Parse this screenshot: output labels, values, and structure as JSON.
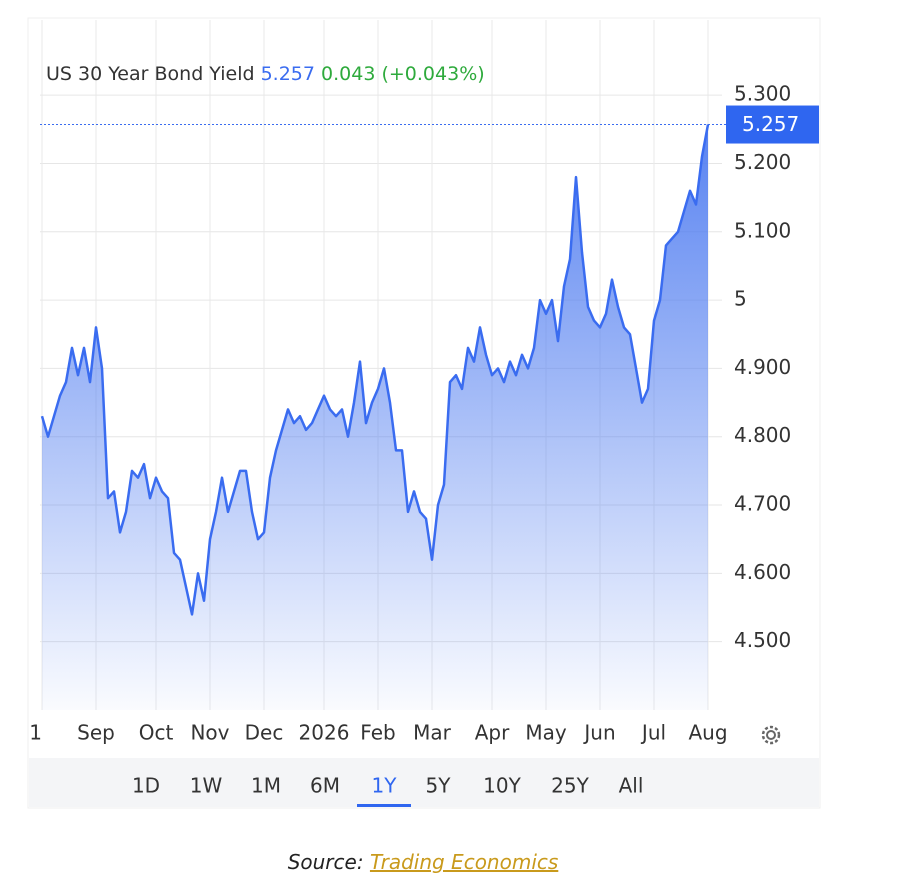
{
  "chart_data": {
    "type": "area-line",
    "title": "US 30 Year Bond Yield",
    "change_text": "0.043 (+0.043%)",
    "series": [
      {
        "name": "US 30 Year Bond Yield",
        "color": "#3a6cf0",
        "values": [
          4.83,
          4.8,
          4.83,
          4.86,
          4.88,
          4.93,
          4.89,
          4.93,
          4.88,
          4.96,
          4.9,
          4.71,
          4.72,
          4.66,
          4.69,
          4.75,
          4.74,
          4.76,
          4.71,
          4.74,
          4.72,
          4.71,
          4.63,
          4.62,
          4.58,
          4.54,
          4.6,
          4.56,
          4.65,
          4.69,
          4.74,
          4.69,
          4.72,
          4.75,
          4.75,
          4.69,
          4.65,
          4.66,
          4.74,
          4.78,
          4.81,
          4.84,
          4.82,
          4.83,
          4.81,
          4.82,
          4.84,
          4.86,
          4.84,
          4.83,
          4.84,
          4.8,
          4.85,
          4.91,
          4.82,
          4.85,
          4.87,
          4.9,
          4.85,
          4.78,
          4.78,
          4.69,
          4.72,
          4.69,
          4.68,
          4.62,
          4.7,
          4.73,
          4.88,
          4.89,
          4.87,
          4.93,
          4.91,
          4.96,
          4.92,
          4.89,
          4.9,
          4.88,
          4.91,
          4.89,
          4.92,
          4.9,
          4.93,
          5.0,
          4.98,
          5.0,
          4.94,
          5.02,
          5.06,
          5.18,
          5.07,
          4.99,
          4.97,
          4.96,
          4.98,
          5.03,
          4.99,
          4.96,
          4.95,
          4.9,
          4.85,
          4.87,
          4.97,
          5.0,
          5.08,
          5.09,
          5.1,
          5.13,
          5.16,
          5.14,
          5.21,
          5.257
        ]
      }
    ],
    "ylim": [
      4.4,
      5.41
    ],
    "yticks": [
      {
        "value": 5.3,
        "label": "5.300"
      },
      {
        "value": 5.2,
        "label": "5.200"
      },
      {
        "value": 5.1,
        "label": "5.100"
      },
      5,
      {
        "value": 4.9,
        "label": "4.900"
      },
      {
        "value": 4.8,
        "label": "4.800"
      },
      {
        "value": 4.7,
        "label": "4.700"
      },
      {
        "value": 4.6,
        "label": "4.600"
      },
      {
        "value": 4.5,
        "label": "4.500"
      }
    ],
    "xticks": [
      {
        "value": 0,
        "label": "1"
      },
      {
        "value": 9,
        "label": "Sep"
      },
      {
        "value": 19,
        "label": "Oct"
      },
      {
        "value": 28,
        "label": "Nov"
      },
      {
        "value": 37,
        "label": "Dec"
      },
      {
        "value": 47,
        "label": "2026"
      },
      {
        "value": 56,
        "label": "Feb"
      },
      {
        "value": 65,
        "label": "Mar"
      },
      {
        "value": 75,
        "label": "Apr"
      },
      {
        "value": 84,
        "label": "May"
      },
      {
        "value": 93,
        "label": "Jun"
      },
      {
        "value": 102,
        "label": "Jul"
      },
      {
        "value": 111,
        "label": "Aug"
      }
    ],
    "grid": true,
    "ranges": [
      "1D",
      "1W",
      "1M",
      "6M",
      "1Y",
      "5Y",
      "10Y",
      "25Y",
      "All"
    ],
    "active_range": "1Y"
  },
  "source": {
    "label": "Source:",
    "link": "Trading Economics"
  }
}
